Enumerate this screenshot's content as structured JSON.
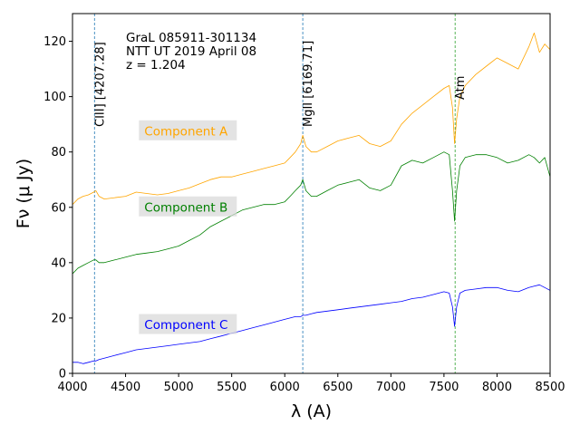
{
  "chart_data": {
    "type": "line",
    "xlabel": "λ (A)",
    "ylabel": "Fν (μ Jy)",
    "xlim": [
      4000,
      8500
    ],
    "ylim": [
      0,
      130
    ],
    "xticks": [
      4000,
      4500,
      5000,
      5500,
      6000,
      6500,
      7000,
      7500,
      8000,
      8500
    ],
    "yticks": [
      0,
      20,
      40,
      60,
      80,
      100,
      120
    ],
    "grid": false,
    "annotation_lines": [
      "GraL 085911-301134",
      "NTT UT 2019 April 08",
      "z = 1.204"
    ],
    "vlines": [
      {
        "x": 4207.28,
        "label": "CIII] [4207.28]",
        "color": "#1f77b4"
      },
      {
        "x": 6169.71,
        "label": "MgII [6169.71]",
        "color": "#1f77b4"
      },
      {
        "x": 7605,
        "label": "Atm",
        "color": "#2ca02c"
      }
    ],
    "series": [
      {
        "name": "Component A",
        "color": "#ffa500",
        "label_pos": [
          4660,
          87.5
        ],
        "x": [
          4000,
          4050,
          4100,
          4150,
          4200,
          4220,
          4250,
          4300,
          4400,
          4500,
          4600,
          4700,
          4800,
          4900,
          5000,
          5100,
          5200,
          5300,
          5400,
          5500,
          5600,
          5700,
          5800,
          5900,
          6000,
          6050,
          6100,
          6150,
          6170,
          6200,
          6250,
          6300,
          6400,
          6500,
          6600,
          6700,
          6800,
          6900,
          7000,
          7100,
          7200,
          7300,
          7400,
          7500,
          7550,
          7580,
          7600,
          7620,
          7650,
          7700,
          7800,
          7900,
          8000,
          8100,
          8200,
          8300,
          8350,
          8400,
          8450,
          8500
        ],
        "values": [
          61,
          63,
          64,
          64.5,
          65.5,
          66,
          64,
          63,
          63.5,
          64,
          65.5,
          65,
          64.5,
          65,
          66,
          67,
          68.5,
          70,
          71,
          71,
          72,
          73,
          74,
          75,
          76,
          78,
          80,
          83,
          86,
          82,
          80,
          80,
          82,
          84,
          85,
          86,
          83,
          82,
          84,
          90,
          94,
          97,
          100,
          103,
          104,
          96,
          83,
          92,
          100,
          104,
          108,
          111,
          114,
          112,
          110,
          118,
          123,
          116,
          119,
          117
        ]
      },
      {
        "name": "Component B",
        "color": "#008000",
        "label_pos": [
          4660,
          60
        ],
        "x": [
          4000,
          4050,
          4100,
          4150,
          4200,
          4220,
          4250,
          4300,
          4400,
          4500,
          4600,
          4700,
          4800,
          4900,
          5000,
          5100,
          5200,
          5300,
          5400,
          5500,
          5600,
          5700,
          5800,
          5900,
          6000,
          6050,
          6100,
          6150,
          6170,
          6200,
          6250,
          6300,
          6400,
          6500,
          6600,
          6700,
          6800,
          6900,
          7000,
          7100,
          7200,
          7300,
          7400,
          7500,
          7550,
          7580,
          7600,
          7620,
          7650,
          7700,
          7800,
          7900,
          8000,
          8100,
          8200,
          8300,
          8350,
          8400,
          8450,
          8500
        ],
        "values": [
          36,
          38,
          39,
          40,
          41,
          41,
          40,
          40,
          41,
          42,
          43,
          43.5,
          44,
          45,
          46,
          48,
          50,
          53,
          55,
          57,
          59,
          60,
          61,
          61,
          62,
          64,
          66,
          68,
          70,
          66,
          64,
          64,
          66,
          68,
          69,
          70,
          67,
          66,
          68,
          75,
          77,
          76,
          78,
          80,
          79,
          66,
          55,
          66,
          75,
          78,
          79,
          79,
          78,
          76,
          77,
          79,
          78,
          76,
          78,
          71
        ]
      },
      {
        "name": "Component C",
        "color": "#0000ff",
        "label_pos": [
          4660,
          17.5
        ],
        "x": [
          4000,
          4050,
          4100,
          4150,
          4200,
          4220,
          4250,
          4300,
          4400,
          4500,
          4600,
          4700,
          4800,
          4900,
          5000,
          5100,
          5200,
          5300,
          5400,
          5500,
          5600,
          5700,
          5800,
          5900,
          6000,
          6050,
          6100,
          6150,
          6170,
          6200,
          6250,
          6300,
          6400,
          6500,
          6600,
          6700,
          6800,
          6900,
          7000,
          7100,
          7200,
          7300,
          7400,
          7500,
          7550,
          7580,
          7600,
          7620,
          7650,
          7700,
          7800,
          7900,
          8000,
          8100,
          8200,
          8300,
          8350,
          8400,
          8450,
          8500
        ],
        "values": [
          4,
          4,
          3.5,
          4,
          4.5,
          4.5,
          5,
          5.5,
          6.5,
          7.5,
          8.5,
          9,
          9.5,
          10,
          10.5,
          11,
          11.5,
          12.5,
          13.5,
          14.5,
          15.5,
          16.5,
          17.5,
          18.5,
          19.5,
          20,
          20.5,
          20.5,
          21,
          21,
          21.5,
          22,
          22.5,
          23,
          23.5,
          24,
          24.5,
          25,
          25.5,
          26,
          27,
          27.5,
          28.5,
          29.5,
          29,
          24,
          17,
          24,
          29,
          30,
          30.5,
          31,
          31,
          30,
          29.5,
          31,
          31.5,
          32,
          31,
          30
        ]
      }
    ]
  }
}
